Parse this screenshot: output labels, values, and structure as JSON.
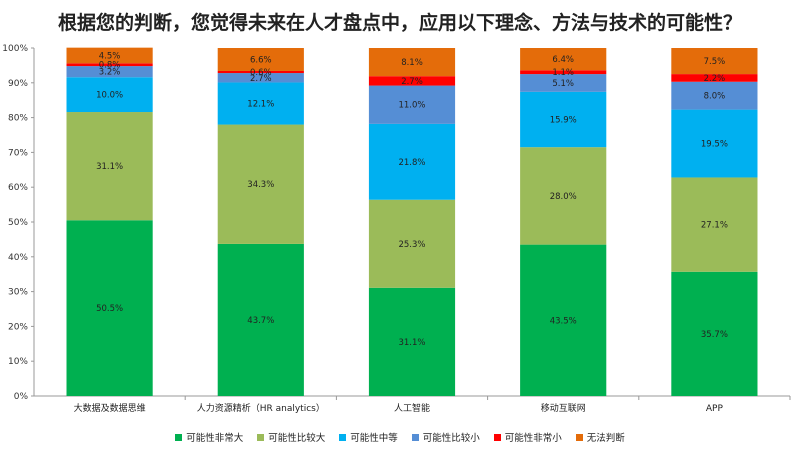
{
  "chart_data": {
    "type": "bar",
    "stacked": true,
    "title": "根据您的判断，您觉得未来在人才盘点中，应用以下理念、方法与技术的可能性？",
    "categories": [
      "大数据及数据思维",
      "人力资源精析（HR analytics）",
      "人工智能",
      "移动互联网",
      "APP"
    ],
    "ylim": [
      0,
      100
    ],
    "yticks": [
      "0%",
      "10%",
      "20%",
      "30%",
      "40%",
      "50%",
      "60%",
      "70%",
      "80%",
      "90%",
      "100%"
    ],
    "series": [
      {
        "name": "可能性非常大",
        "color": "#00b050",
        "values": [
          50.5,
          43.7,
          31.1,
          43.5,
          35.7
        ],
        "labels": [
          "50.5%",
          "43.7%",
          "31.1%",
          "43.5%",
          "35.7%"
        ]
      },
      {
        "name": "可能性比较大",
        "color": "#9bbb59",
        "values": [
          31.1,
          34.3,
          25.3,
          28.0,
          27.1
        ],
        "labels": [
          "31.1%",
          "34.3%",
          "25.3%",
          "28.0%",
          "27.1%"
        ]
      },
      {
        "name": "可能性中等",
        "color": "#00b0f0",
        "values": [
          10.0,
          12.1,
          21.8,
          15.9,
          19.5
        ],
        "labels": [
          "10.0%",
          "12.1%",
          "21.8%",
          "15.9%",
          "19.5%"
        ]
      },
      {
        "name": "可能性比较小",
        "color": "#558ed5",
        "values": [
          3.2,
          2.7,
          11.0,
          5.1,
          8.0
        ],
        "labels": [
          "3.2%",
          "2.7%",
          "11.0%",
          "5.1%",
          "8.0%"
        ]
      },
      {
        "name": "可能性非常小",
        "color": "#ff0000",
        "values": [
          0.8,
          0.6,
          2.7,
          1.1,
          2.2
        ],
        "labels": [
          "0.8%",
          "0.6%",
          "2.7%",
          "1.1%",
          "2.2%"
        ]
      },
      {
        "name": "无法判断",
        "color": "#e46c0a",
        "values": [
          4.5,
          6.6,
          8.1,
          6.4,
          7.5
        ],
        "labels": [
          "4.5%",
          "6.6%",
          "8.1%",
          "6.4%",
          "7.5%"
        ]
      }
    ],
    "grid": false,
    "legend": "bottom"
  }
}
